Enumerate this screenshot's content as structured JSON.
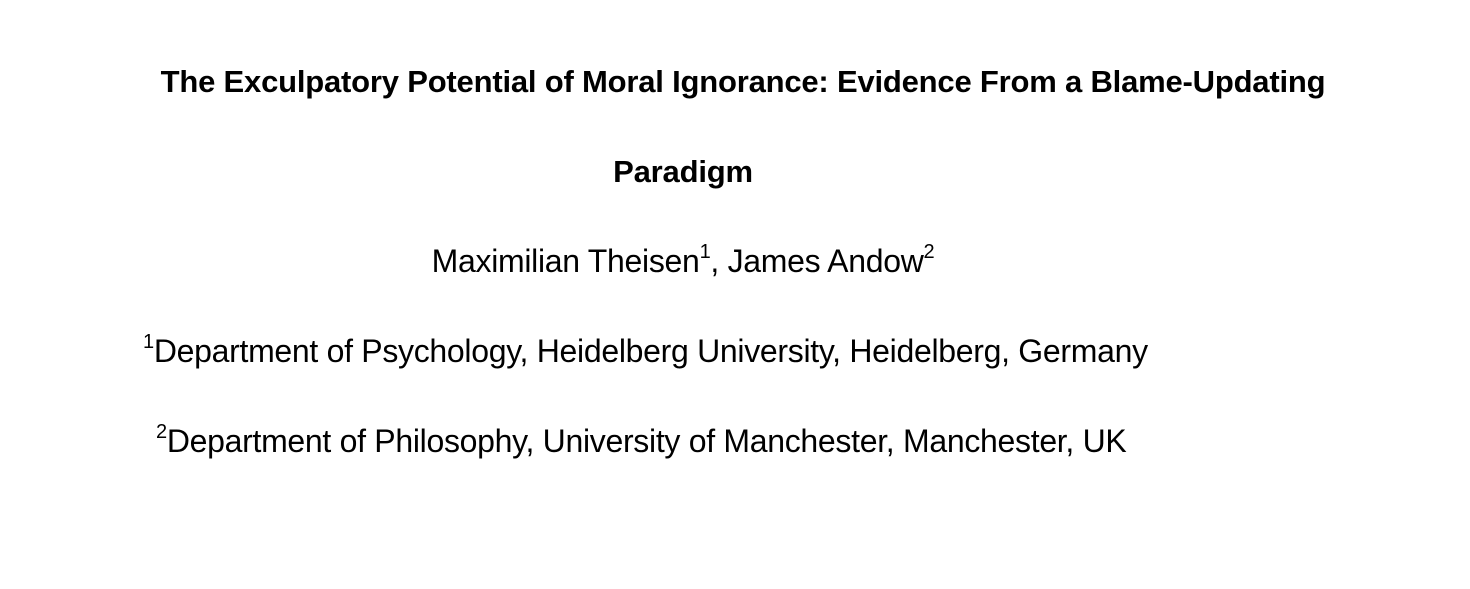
{
  "paper": {
    "title_line1": "The Exculpatory Potential of Moral Ignorance: Evidence From a Blame-Updating",
    "title_line2": "Paradigm",
    "authors": [
      {
        "name": "Maximilian Theisen",
        "affiliation_mark": "1"
      },
      {
        "name": "James Andow",
        "affiliation_mark": "2"
      }
    ],
    "author_separator": ", ",
    "affiliations": [
      {
        "mark": "1",
        "text": "Department of Psychology, Heidelberg University, Heidelberg, Germany"
      },
      {
        "mark": "2",
        "text": "Department of Philosophy, University of Manchester, Manchester, UK"
      }
    ]
  }
}
